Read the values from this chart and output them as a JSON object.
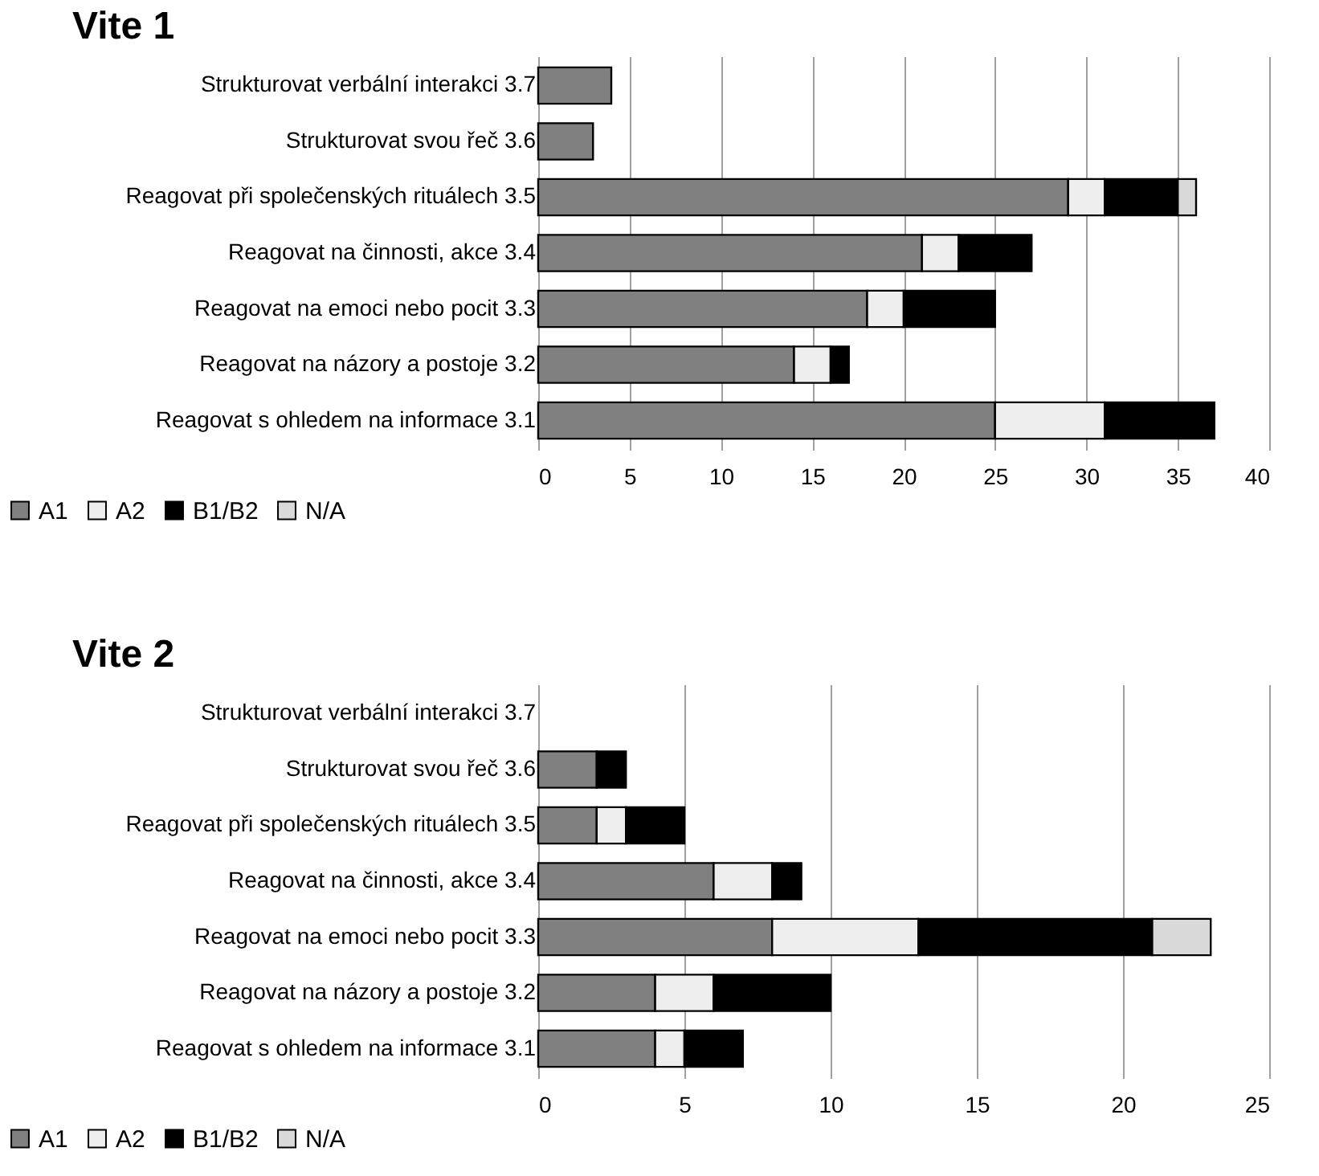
{
  "chart_data": [
    {
      "type": "bar",
      "orientation": "horizontal",
      "stacked": true,
      "title": "Vite 1",
      "categories": [
        "Strukturovat verbální interakci 3.7",
        "Strukturovat svou řeč 3.6",
        "Reagovat při společenských rituálech 3.5",
        "Reagovat na činnosti, akce 3.4",
        "Reagovat na emoci nebo pocit 3.3",
        "Reagovat na názory a postoje 3.2",
        "Reagovat s ohledem na informace 3.1"
      ],
      "series": [
        {
          "name": "A1",
          "color": "#808080",
          "values": [
            4,
            3,
            29,
            21,
            18,
            14,
            25
          ]
        },
        {
          "name": "A2",
          "color": "#eeeeee",
          "values": [
            null,
            null,
            2,
            2,
            2,
            2,
            6
          ]
        },
        {
          "name": "B1/B2",
          "color": "#000000",
          "values": [
            null,
            null,
            4,
            4,
            5,
            1,
            6
          ]
        },
        {
          "name": "N/A",
          "color": "#d9d9d9",
          "values": [
            null,
            null,
            1,
            null,
            null,
            null,
            null
          ]
        }
      ],
      "xlim": [
        0,
        40
      ],
      "xticks": [
        0,
        5,
        10,
        15,
        20,
        25,
        30,
        35,
        40
      ],
      "grid": "x",
      "legend": "bottom left"
    },
    {
      "type": "bar",
      "orientation": "horizontal",
      "stacked": true,
      "title": "Vite 2",
      "categories": [
        "Strukturovat verbální interakci 3.7",
        "Strukturovat svou řeč 3.6",
        "Reagovat při společenských rituálech 3.5",
        "Reagovat na činnosti, akce 3.4",
        "Reagovat na emoci nebo pocit 3.3",
        "Reagovat na názory a postoje 3.2",
        "Reagovat s ohledem na informace 3.1"
      ],
      "series": [
        {
          "name": "A1",
          "color": "#808080",
          "values": [
            null,
            2,
            2,
            6,
            8,
            4,
            4
          ]
        },
        {
          "name": "A2",
          "color": "#eeeeee",
          "values": [
            null,
            null,
            1,
            2,
            5,
            2,
            1
          ]
        },
        {
          "name": "B1/B2",
          "color": "#000000",
          "values": [
            null,
            1,
            2,
            1,
            8,
            4,
            2
          ]
        },
        {
          "name": "N/A",
          "color": "#d9d9d9",
          "values": [
            null,
            null,
            null,
            null,
            2,
            null,
            null
          ]
        }
      ],
      "xlim": [
        0,
        25
      ],
      "xticks": [
        0,
        5,
        10,
        15,
        20,
        25
      ],
      "grid": "x",
      "legend": "bottom left"
    }
  ]
}
